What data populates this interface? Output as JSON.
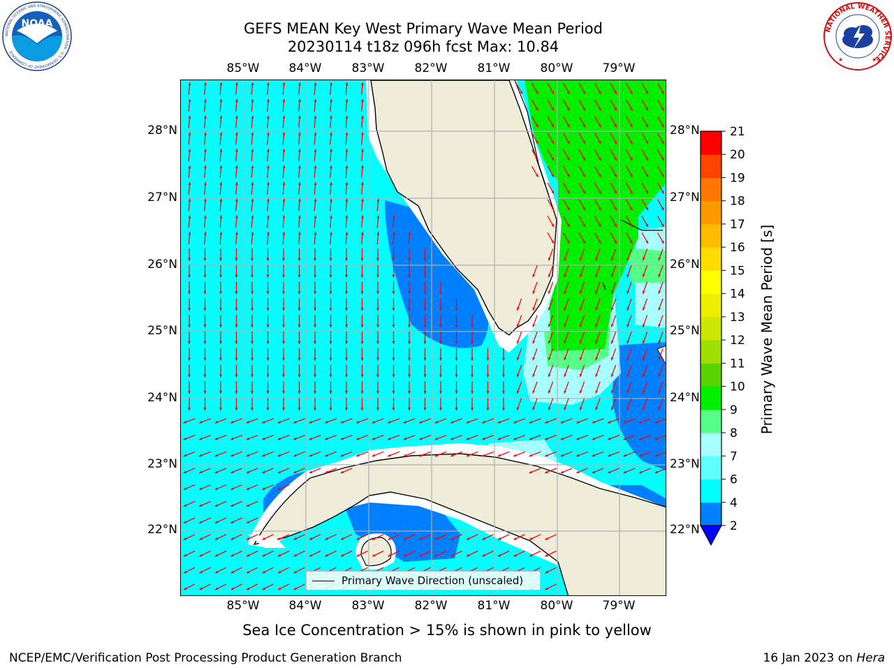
{
  "header": {
    "title_line1": "GEFS MEAN Key West Primary Wave Mean Period",
    "title_line2": "20230114 t18z 096h fcst   Max: 10.84"
  },
  "logos": {
    "left": {
      "name": "NOAA",
      "text": "NOAA",
      "ring_text": "NATIONAL OCEANIC AND ATMOSPHERIC ADMINISTRATION · U.S. DEPARTMENT OF COMMERCE"
    },
    "right": {
      "name": "National Weather Service",
      "ring_text": "NATIONAL WEATHER SERVICE"
    }
  },
  "map": {
    "lon_ticks": [
      "85°W",
      "84°W",
      "83°W",
      "82°W",
      "81°W",
      "80°W",
      "79°W"
    ],
    "lat_ticks": [
      "28°N",
      "27°N",
      "26°N",
      "25°N",
      "24°N",
      "23°N",
      "22°N"
    ],
    "legend_label": "Primary Wave Direction (unscaled)",
    "max_value": 10.84
  },
  "colorbar": {
    "label": "Primary Wave Mean Period [s]",
    "levels": [
      2,
      4,
      6,
      7,
      8,
      9,
      10,
      11,
      12,
      13,
      14,
      15,
      16,
      17,
      18,
      19,
      20,
      21
    ],
    "tick_labels": [
      "2",
      "4",
      "6",
      "7",
      "8",
      "9",
      "10",
      "11",
      "12",
      "13",
      "14",
      "15",
      "16",
      "17",
      "18",
      "19",
      "20",
      "21"
    ],
    "colors": [
      "#0080ff",
      "#00ffff",
      "#5effff",
      "#a8ffff",
      "#55ff88",
      "#00ee00",
      "#5ad400",
      "#a0e000",
      "#cce800",
      "#eeee00",
      "#ffff00",
      "#ffdd00",
      "#ffbb00",
      "#ff9900",
      "#ff7700",
      "#ff4400",
      "#ff0000"
    ],
    "under_color": "#0000ff"
  },
  "notes": {
    "sea_ice": "Sea Ice Concentration > 15% is shown in pink to yellow"
  },
  "footer": {
    "left": "NCEP/EMC/Verification Post Processing Product Generation Branch",
    "date": "16 Jan 2023 on ",
    "machine": "Hera"
  }
}
